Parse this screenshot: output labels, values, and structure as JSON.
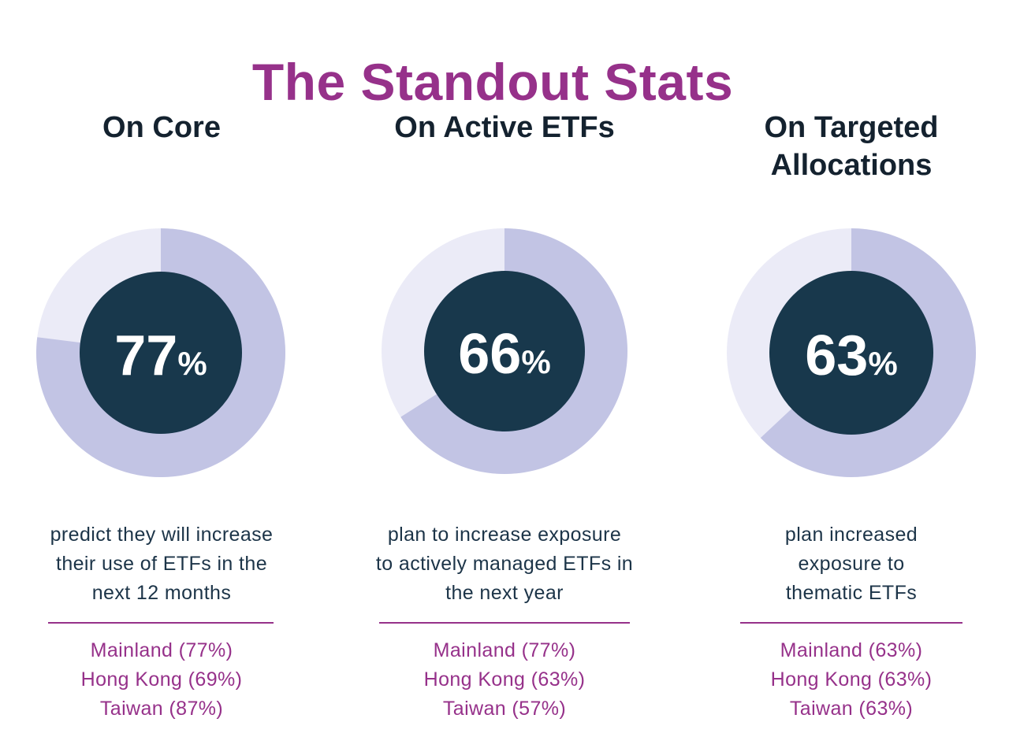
{
  "title": "The Standout Stats",
  "colors": {
    "title": "#96318a",
    "heading": "#14222f",
    "body_text": "#1c3448",
    "accent": "#96318a",
    "donut_center": "#18384c",
    "donut_filled": "#c2c4e4",
    "donut_remainder": "#ebebf7",
    "donut_label": "#ffffff"
  },
  "chart_data": [
    {
      "type": "pie",
      "title": "On Core",
      "value": 77,
      "value_suffix": "%",
      "description": "predict they will increase\ntheir use of ETFs in the\nnext 12 months",
      "regions": [
        {
          "name": "Mainland",
          "value": 77,
          "label": "Mainland (77%)"
        },
        {
          "name": "Hong Kong",
          "value": 69,
          "label": "Hong Kong (69%)"
        },
        {
          "name": "Taiwan",
          "value": 87,
          "label": "Taiwan (87%)"
        }
      ]
    },
    {
      "type": "pie",
      "title": "On Active ETFs",
      "value": 66,
      "value_suffix": "%",
      "description": "plan to increase exposure\nto actively managed ETFs in\nthe next year",
      "regions": [
        {
          "name": "Mainland",
          "value": 77,
          "label": "Mainland (77%)"
        },
        {
          "name": "Hong Kong",
          "value": 63,
          "label": "Hong Kong (63%)"
        },
        {
          "name": "Taiwan",
          "value": 57,
          "label": "Taiwan (57%)"
        }
      ]
    },
    {
      "type": "pie",
      "title": "On Targeted\nAllocations",
      "value": 63,
      "value_suffix": "%",
      "description": "plan increased\nexposure to\nthematic ETFs",
      "regions": [
        {
          "name": "Mainland",
          "value": 63,
          "label": "Mainland (63%)"
        },
        {
          "name": "Hong Kong",
          "value": 63,
          "label": "Hong Kong (63%)"
        },
        {
          "name": "Taiwan",
          "value": 63,
          "label": "Taiwan (63%)"
        }
      ]
    }
  ]
}
